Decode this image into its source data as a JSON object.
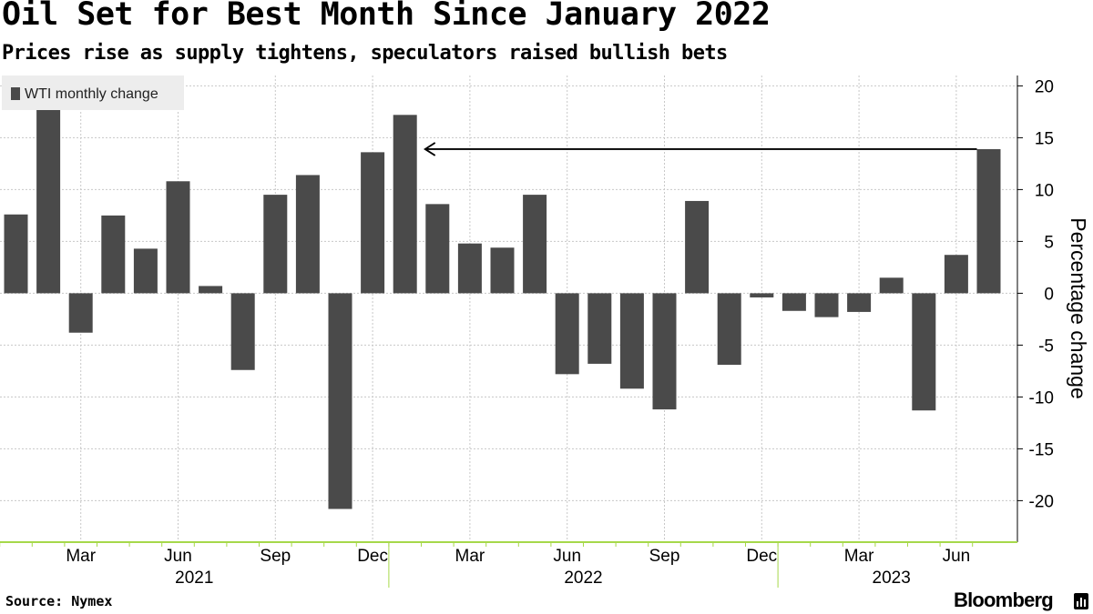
{
  "header": {
    "title": "Oil Set for Best Month Since January 2022",
    "subtitle": "Prices rise as supply tightens, speculators raised bullish bets"
  },
  "footer": {
    "source": "Source: Nymex",
    "brand": "Bloomberg",
    "brand_icon": "bloomberg-chart-icon"
  },
  "colors": {
    "bar": "#4a4a4a",
    "grid": "#c8c8c8",
    "axis_baseline": "#a6d84a",
    "legend_bg": "#ededed",
    "arrow": "#000000"
  },
  "chart_data": {
    "type": "bar",
    "legend": {
      "label": "WTI monthly change",
      "placement": "top-left"
    },
    "ylabel": "Percentage change",
    "yaxis_position": "right",
    "ylim": [
      -24,
      21
    ],
    "yticks": [
      20,
      15,
      10,
      5,
      0,
      -5,
      -10,
      -15,
      -20
    ],
    "grid": true,
    "series": [
      {
        "name": "WTI monthly change",
        "months": [
          "2021-01",
          "2021-02",
          "2021-03",
          "2021-04",
          "2021-05",
          "2021-06",
          "2021-07",
          "2021-08",
          "2021-09",
          "2021-10",
          "2021-11",
          "2021-12",
          "2022-01",
          "2022-02",
          "2022-03",
          "2022-04",
          "2022-05",
          "2022-06",
          "2022-07",
          "2022-08",
          "2022-09",
          "2022-10",
          "2022-11",
          "2022-12",
          "2023-01",
          "2023-02",
          "2023-03",
          "2023-04",
          "2023-05",
          "2023-06",
          "2023-07"
        ],
        "values": [
          7.6,
          17.8,
          -3.8,
          7.5,
          4.3,
          10.8,
          0.7,
          -7.4,
          9.5,
          11.4,
          -20.8,
          13.6,
          17.2,
          8.6,
          4.8,
          4.4,
          9.5,
          -7.8,
          -6.8,
          -9.2,
          -11.2,
          8.9,
          -6.9,
          -0.4,
          -1.7,
          -2.3,
          -1.8,
          1.5,
          -11.3,
          3.7,
          13.9
        ]
      }
    ],
    "x_month_labels": [
      {
        "label": "Mar",
        "index": 2
      },
      {
        "label": "Jun",
        "index": 5
      },
      {
        "label": "Sep",
        "index": 8
      },
      {
        "label": "Dec",
        "index": 11
      },
      {
        "label": "Mar",
        "index": 14
      },
      {
        "label": "Jun",
        "index": 17
      },
      {
        "label": "Sep",
        "index": 20
      },
      {
        "label": "Dec",
        "index": 23
      },
      {
        "label": "Mar",
        "index": 26
      },
      {
        "label": "Jun",
        "index": 29
      }
    ],
    "x_year_labels": [
      {
        "label": "2021",
        "from": 0,
        "to": 11
      },
      {
        "label": "2022",
        "from": 12,
        "to": 23
      },
      {
        "label": "2023",
        "from": 24,
        "to": 30
      }
    ],
    "annotations": [
      {
        "type": "arrow",
        "from_index": 30,
        "to_index": 12,
        "y": 13.9
      }
    ]
  }
}
